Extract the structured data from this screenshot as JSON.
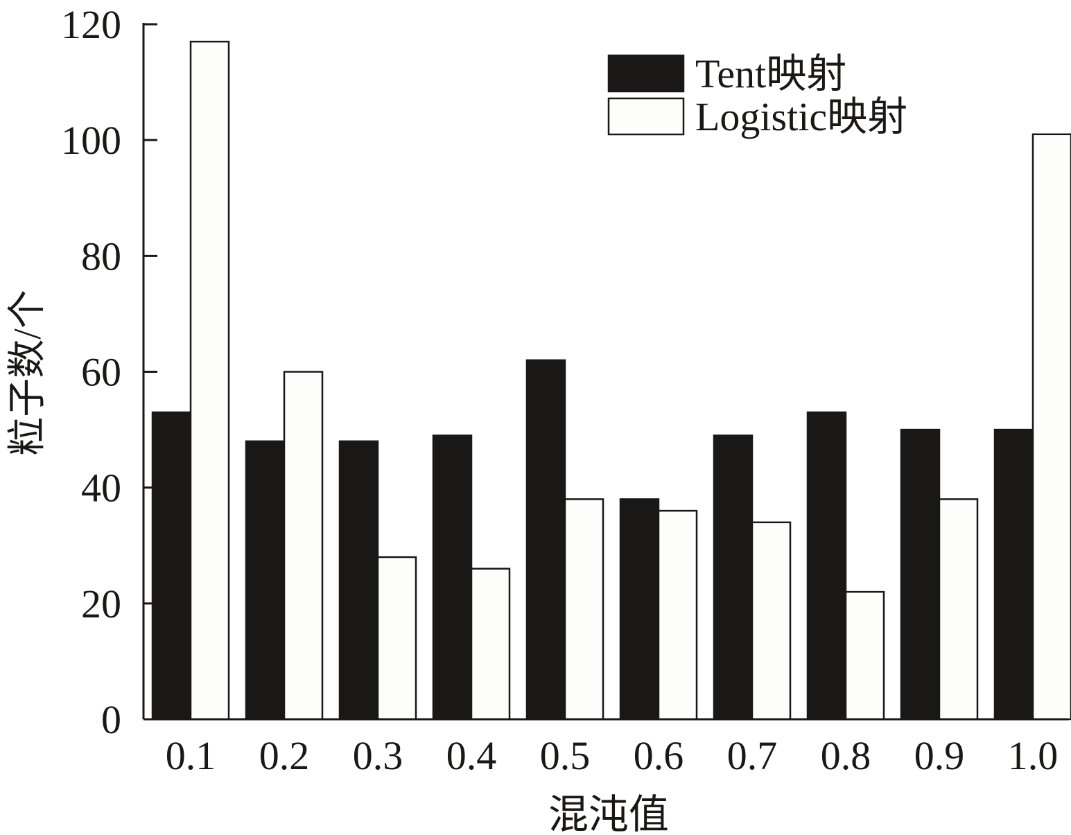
{
  "chart_data": {
    "type": "bar",
    "title": "",
    "xlabel": "混沌值",
    "ylabel": "粒子数/个",
    "categories": [
      "0.1",
      "0.2",
      "0.3",
      "0.4",
      "0.5",
      "0.6",
      "0.7",
      "0.8",
      "0.9",
      "1.0"
    ],
    "series": [
      {
        "name": "Tent映射",
        "color": "#1a1816",
        "values": [
          53,
          48,
          48,
          49,
          62,
          38,
          49,
          53,
          50,
          50
        ]
      },
      {
        "name": "Logistic映射",
        "color": "#fdfdfb",
        "values": [
          117,
          60,
          28,
          26,
          38,
          36,
          34,
          22,
          38,
          101
        ]
      }
    ],
    "ylim": [
      0,
      120
    ],
    "yticks": [
      0,
      20,
      40,
      60,
      80,
      100,
      120
    ],
    "grid": false,
    "legend": "top-right"
  }
}
